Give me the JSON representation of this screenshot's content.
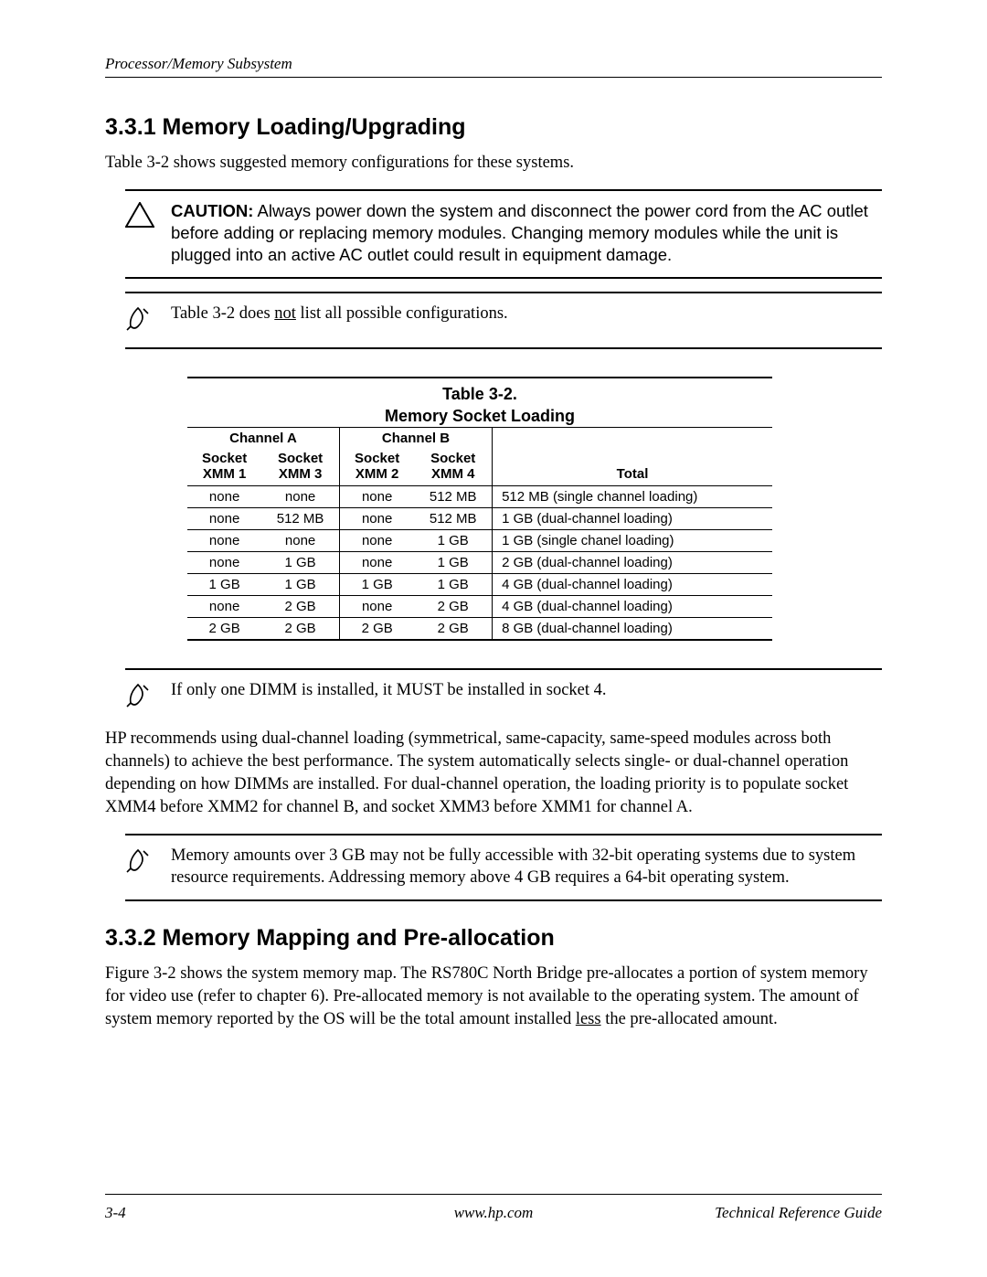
{
  "header": {
    "breadcrumb": "Processor/Memory Subsystem"
  },
  "s1": {
    "heading": "3.3.1 Memory Loading/Upgrading",
    "intro": "Table 3-2 shows suggested memory configurations for these systems."
  },
  "caution": {
    "label": "CAUTION:",
    "text": " Always power down the system and disconnect the power cord from the AC outlet before adding or replacing memory modules. Changing memory modules while the unit is plugged into an active AC outlet could result in equipment damage."
  },
  "note1_a": "Table 3-2 does ",
  "note1_u": "not",
  "note1_b": " list all possible configurations.",
  "table": {
    "title_a": "Table 3-2.",
    "title_b": "Memory Socket Loading",
    "ch_a": "Channel A",
    "ch_b": "Channel B",
    "sock1_a": "Socket",
    "sock1_b": "XMM 1",
    "sock2_a": "Socket",
    "sock2_b": "XMM 3",
    "sock3_a": "Socket",
    "sock3_b": "XMM 2",
    "sock4_a": "Socket",
    "sock4_b": "XMM 4",
    "total": "Total",
    "rows": [
      [
        "none",
        "none",
        "none",
        "512 MB",
        "512 MB (single channel loading)"
      ],
      [
        "none",
        "512 MB",
        "none",
        "512 MB",
        "1 GB (dual-channel loading)"
      ],
      [
        "none",
        "none",
        "none",
        "1 GB",
        "1 GB (single chanel loading)"
      ],
      [
        "none",
        "1 GB",
        "none",
        "1 GB",
        "2 GB (dual-channel loading)"
      ],
      [
        "1 GB",
        "1 GB",
        "1 GB",
        "1 GB",
        "4 GB (dual-channel loading)"
      ],
      [
        "none",
        "2 GB",
        "none",
        "2 GB",
        "4 GB (dual-channel loading)"
      ],
      [
        "2 GB",
        "2 GB",
        "2 GB",
        "2 GB",
        "8 GB (dual-channel loading)"
      ]
    ]
  },
  "note2": "If only one DIMM is installed, it MUST be installed in socket 4.",
  "para1": "HP recommends using dual-channel loading (symmetrical, same-capacity, same-speed modules across both channels) to achieve the best performance. The system automatically selects single- or dual-channel operation depending on how DIMMs are installed. For dual-channel operation, the loading priority is to populate socket XMM4 before XMM2 for channel B, and socket XMM3 before XMM1 for channel A.",
  "note3": "Memory amounts over 3 GB may not be fully accessible with 32-bit operating systems due to system resource requirements. Addressing memory above 4 GB requires a 64-bit operating system.",
  "s2": {
    "heading": "3.3.2 Memory Mapping and Pre-allocation",
    "para_a": "Figure 3-2 shows the system memory map. The RS780C North Bridge pre-allocates a portion of system memory for video use (refer to chapter 6). Pre-allocated memory is not available to the operating system. The amount of system memory reported by the OS will be the total amount installed ",
    "para_u": "less",
    "para_b": " the pre-allocated amount."
  },
  "footer": {
    "page": "3-4",
    "url": "www.hp.com",
    "doc": "Technical Reference Guide"
  },
  "icons": {
    "caution_svg": "triangle",
    "note_svg": "pencil"
  }
}
